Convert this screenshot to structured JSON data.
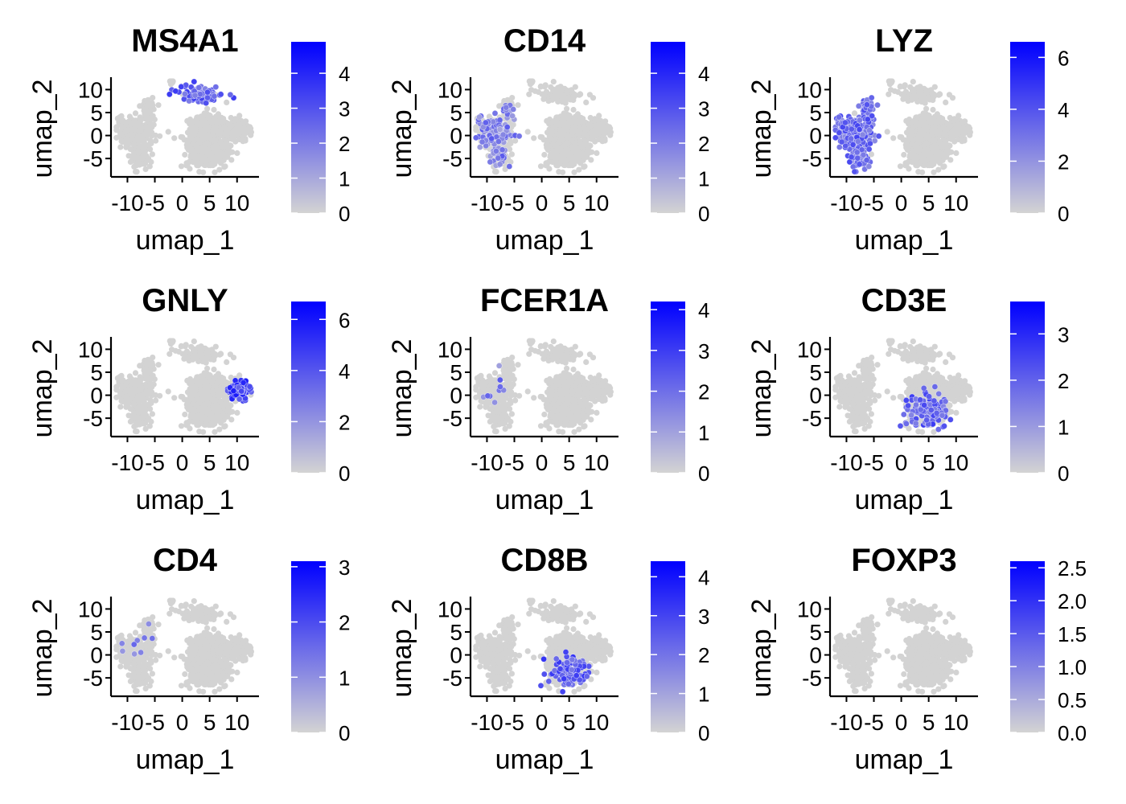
{
  "chart_data": {
    "type": "scatter",
    "xlabel": "umap_1",
    "ylabel": "umap_2",
    "xlim": [
      -13,
      14
    ],
    "ylim": [
      -9,
      12
    ],
    "x_ticks": [
      -10,
      -5,
      0,
      5,
      10
    ],
    "x_tick_labels": [
      "-10",
      "-5",
      "0",
      "5",
      "10"
    ],
    "y_ticks": [
      -5,
      0,
      5,
      10
    ],
    "y_tick_labels": [
      "-5",
      "0",
      "5",
      "10"
    ],
    "colors": {
      "low": "#d3d3d3",
      "high": "#0000ff",
      "background_points": "#d3d3d3"
    },
    "panels": [
      {
        "gene": "MS4A1",
        "legend_max": 4.9,
        "legend_ticks": [
          "0",
          "1",
          "2",
          "3",
          "4"
        ],
        "expression_regions": [
          {
            "region": "top_island",
            "intensity": 0.55,
            "density": 0.8
          }
        ]
      },
      {
        "gene": "CD14",
        "legend_max": 4.9,
        "legend_ticks": [
          "0",
          "1",
          "2",
          "3",
          "4"
        ],
        "expression_regions": [
          {
            "region": "left_cluster",
            "intensity": 0.4,
            "density": 0.45
          }
        ]
      },
      {
        "gene": "LYZ",
        "legend_max": 6.6,
        "legend_ticks": [
          "0",
          "2",
          "4",
          "6"
        ],
        "expression_regions": [
          {
            "region": "left_cluster",
            "intensity": 0.5,
            "density": 0.95
          }
        ]
      },
      {
        "gene": "GNLY",
        "legend_max": 6.7,
        "legend_ticks": [
          "0",
          "2",
          "4",
          "6"
        ],
        "expression_regions": [
          {
            "region": "right_arm",
            "intensity": 0.7,
            "density": 0.95
          }
        ]
      },
      {
        "gene": "FCER1A",
        "legend_max": 4.2,
        "legend_ticks": [
          "0",
          "1",
          "2",
          "3",
          "4"
        ],
        "expression_regions": [
          {
            "region": "left_cluster",
            "intensity": 0.4,
            "density": 0.04
          }
        ]
      },
      {
        "gene": "CD3E",
        "legend_max": 3.7,
        "legend_ticks": [
          "0",
          "1",
          "2",
          "3"
        ],
        "expression_regions": [
          {
            "region": "right_lower",
            "intensity": 0.55,
            "density": 0.4
          }
        ]
      },
      {
        "gene": "CD4",
        "legend_max": 3.1,
        "legend_ticks": [
          "0",
          "1",
          "2",
          "3"
        ],
        "expression_regions": [
          {
            "region": "left_cluster",
            "intensity": 0.35,
            "density": 0.03
          }
        ]
      },
      {
        "gene": "CD8B",
        "legend_max": 4.4,
        "legend_ticks": [
          "0",
          "1",
          "2",
          "3",
          "4"
        ],
        "expression_regions": [
          {
            "region": "right_lower",
            "intensity": 0.6,
            "density": 0.3
          }
        ]
      },
      {
        "gene": "FOXP3",
        "legend_max": 2.6,
        "legend_ticks": [
          "0.0",
          "0.5",
          "1.0",
          "1.5",
          "2.0",
          "2.5"
        ],
        "expression_regions": []
      }
    ]
  }
}
